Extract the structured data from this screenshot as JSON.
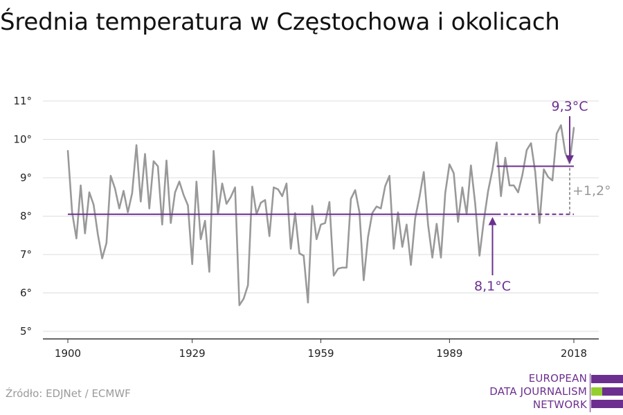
{
  "title": "Średnia temperatura w Częstochowa i okolicach",
  "source": "Źródło: EDJNet / ECMWF",
  "logo": {
    "lines": [
      "EUROPEAN",
      "DATA JOURNALISM",
      "NETWORK"
    ],
    "colors": {
      "purple": "#6c2f8f",
      "green": "#95cf2e"
    }
  },
  "colors": {
    "series": "#999999",
    "accent": "#6c2f8f",
    "difference": "#999999",
    "grid": "#dddddd",
    "axis": "#333333"
  },
  "chart_data": {
    "type": "line",
    "title": "Średnia temperatura w Częstochowa i okolicach",
    "xlabel": "",
    "ylabel": "",
    "xlim": [
      1900,
      2018
    ],
    "ylim": [
      5,
      11
    ],
    "grid": true,
    "y_ticks": [
      {
        "value": 5,
        "label": "5°"
      },
      {
        "value": 6,
        "label": "6°"
      },
      {
        "value": 7,
        "label": "7°"
      },
      {
        "value": 8,
        "label": "8°"
      },
      {
        "value": 9,
        "label": "9°"
      },
      {
        "value": 10,
        "label": "10°"
      },
      {
        "value": 11,
        "label": "11°"
      }
    ],
    "x_ticks": [
      {
        "value": 1900,
        "label": "1900"
      },
      {
        "value": 1929,
        "label": "1929"
      },
      {
        "value": 1959,
        "label": "1959"
      },
      {
        "value": 1989,
        "label": "1989"
      },
      {
        "value": 2018,
        "label": "2018"
      }
    ],
    "series": [
      {
        "x": [
          1900,
          1901,
          1902,
          1903,
          1904,
          1905,
          1906,
          1907,
          1908,
          1909,
          1910,
          1911,
          1912,
          1913,
          1914,
          1915,
          1916,
          1917,
          1918,
          1919,
          1920,
          1921,
          1922,
          1923,
          1924,
          1925,
          1926,
          1927,
          1928,
          1929,
          1930,
          1931,
          1932,
          1933,
          1934,
          1935,
          1936,
          1937,
          1938,
          1939,
          1940,
          1941,
          1942,
          1943,
          1944,
          1945,
          1946,
          1947,
          1948,
          1949,
          1950,
          1951,
          1952,
          1953,
          1954,
          1955,
          1956,
          1957,
          1958,
          1959,
          1960,
          1961,
          1962,
          1963,
          1964,
          1965,
          1966,
          1967,
          1968,
          1969,
          1970,
          1971,
          1972,
          1973,
          1974,
          1975,
          1976,
          1977,
          1978,
          1979,
          1980,
          1981,
          1982,
          1983,
          1984,
          1985,
          1986,
          1987,
          1988,
          1989,
          1990,
          1991,
          1992,
          1993,
          1994,
          1995,
          1996,
          1997,
          1998,
          1999,
          2000,
          2001,
          2002,
          2003,
          2004,
          2005,
          2006,
          2007,
          2008,
          2009,
          2010,
          2011,
          2012,
          2013,
          2014,
          2015,
          2016,
          2017,
          2018
        ],
        "values": [
          9.7,
          8.1,
          7.42,
          8.8,
          7.55,
          8.62,
          8.3,
          7.52,
          6.9,
          7.3,
          9.05,
          8.72,
          8.2,
          8.66,
          8.1,
          8.6,
          9.85,
          8.38,
          9.62,
          8.2,
          9.43,
          9.3,
          7.78,
          9.45,
          7.82,
          8.62,
          8.9,
          8.55,
          8.28,
          6.75,
          8.9,
          7.4,
          7.88,
          6.55,
          9.7,
          8.05,
          8.85,
          8.32,
          8.5,
          8.75,
          5.68,
          5.85,
          6.2,
          8.77,
          8.05,
          8.35,
          8.42,
          7.48,
          8.75,
          8.7,
          8.52,
          8.85,
          7.15,
          8.08,
          7.03,
          6.97,
          5.75,
          8.27,
          7.4,
          7.78,
          7.82,
          8.37,
          6.45,
          6.63,
          6.66,
          6.66,
          8.45,
          8.68,
          8.1,
          6.33,
          7.45,
          8.08,
          8.25,
          8.2,
          8.78,
          9.05,
          7.15,
          8.1,
          7.2,
          7.78,
          6.73,
          7.95,
          8.5,
          9.15,
          7.78,
          6.92,
          7.8,
          6.92,
          8.6,
          9.35,
          9.12,
          7.85,
          8.75,
          8.05,
          9.32,
          8.32,
          6.97,
          7.88,
          8.65,
          9.2,
          9.92,
          8.52,
          9.52,
          8.8,
          8.8,
          8.62,
          9.08,
          9.72,
          9.9,
          9.15,
          7.82,
          9.22,
          9.02,
          8.93,
          10.15,
          10.37,
          9.65,
          9.38,
          10.3
        ]
      }
    ],
    "reference_lines": [
      {
        "label": "8,1°C",
        "value": 8.05,
        "from": 1900,
        "to": 2000,
        "style": "solid"
      },
      {
        "value": 8.05,
        "from": 2000,
        "to": 2018,
        "style": "dashed"
      },
      {
        "label": "9,3°C",
        "value": 9.3,
        "from": 2000,
        "to": 2018,
        "style": "solid"
      }
    ],
    "difference": {
      "label": "+1,2°",
      "x": 2018,
      "from": 8.05,
      "to": 9.3
    }
  }
}
